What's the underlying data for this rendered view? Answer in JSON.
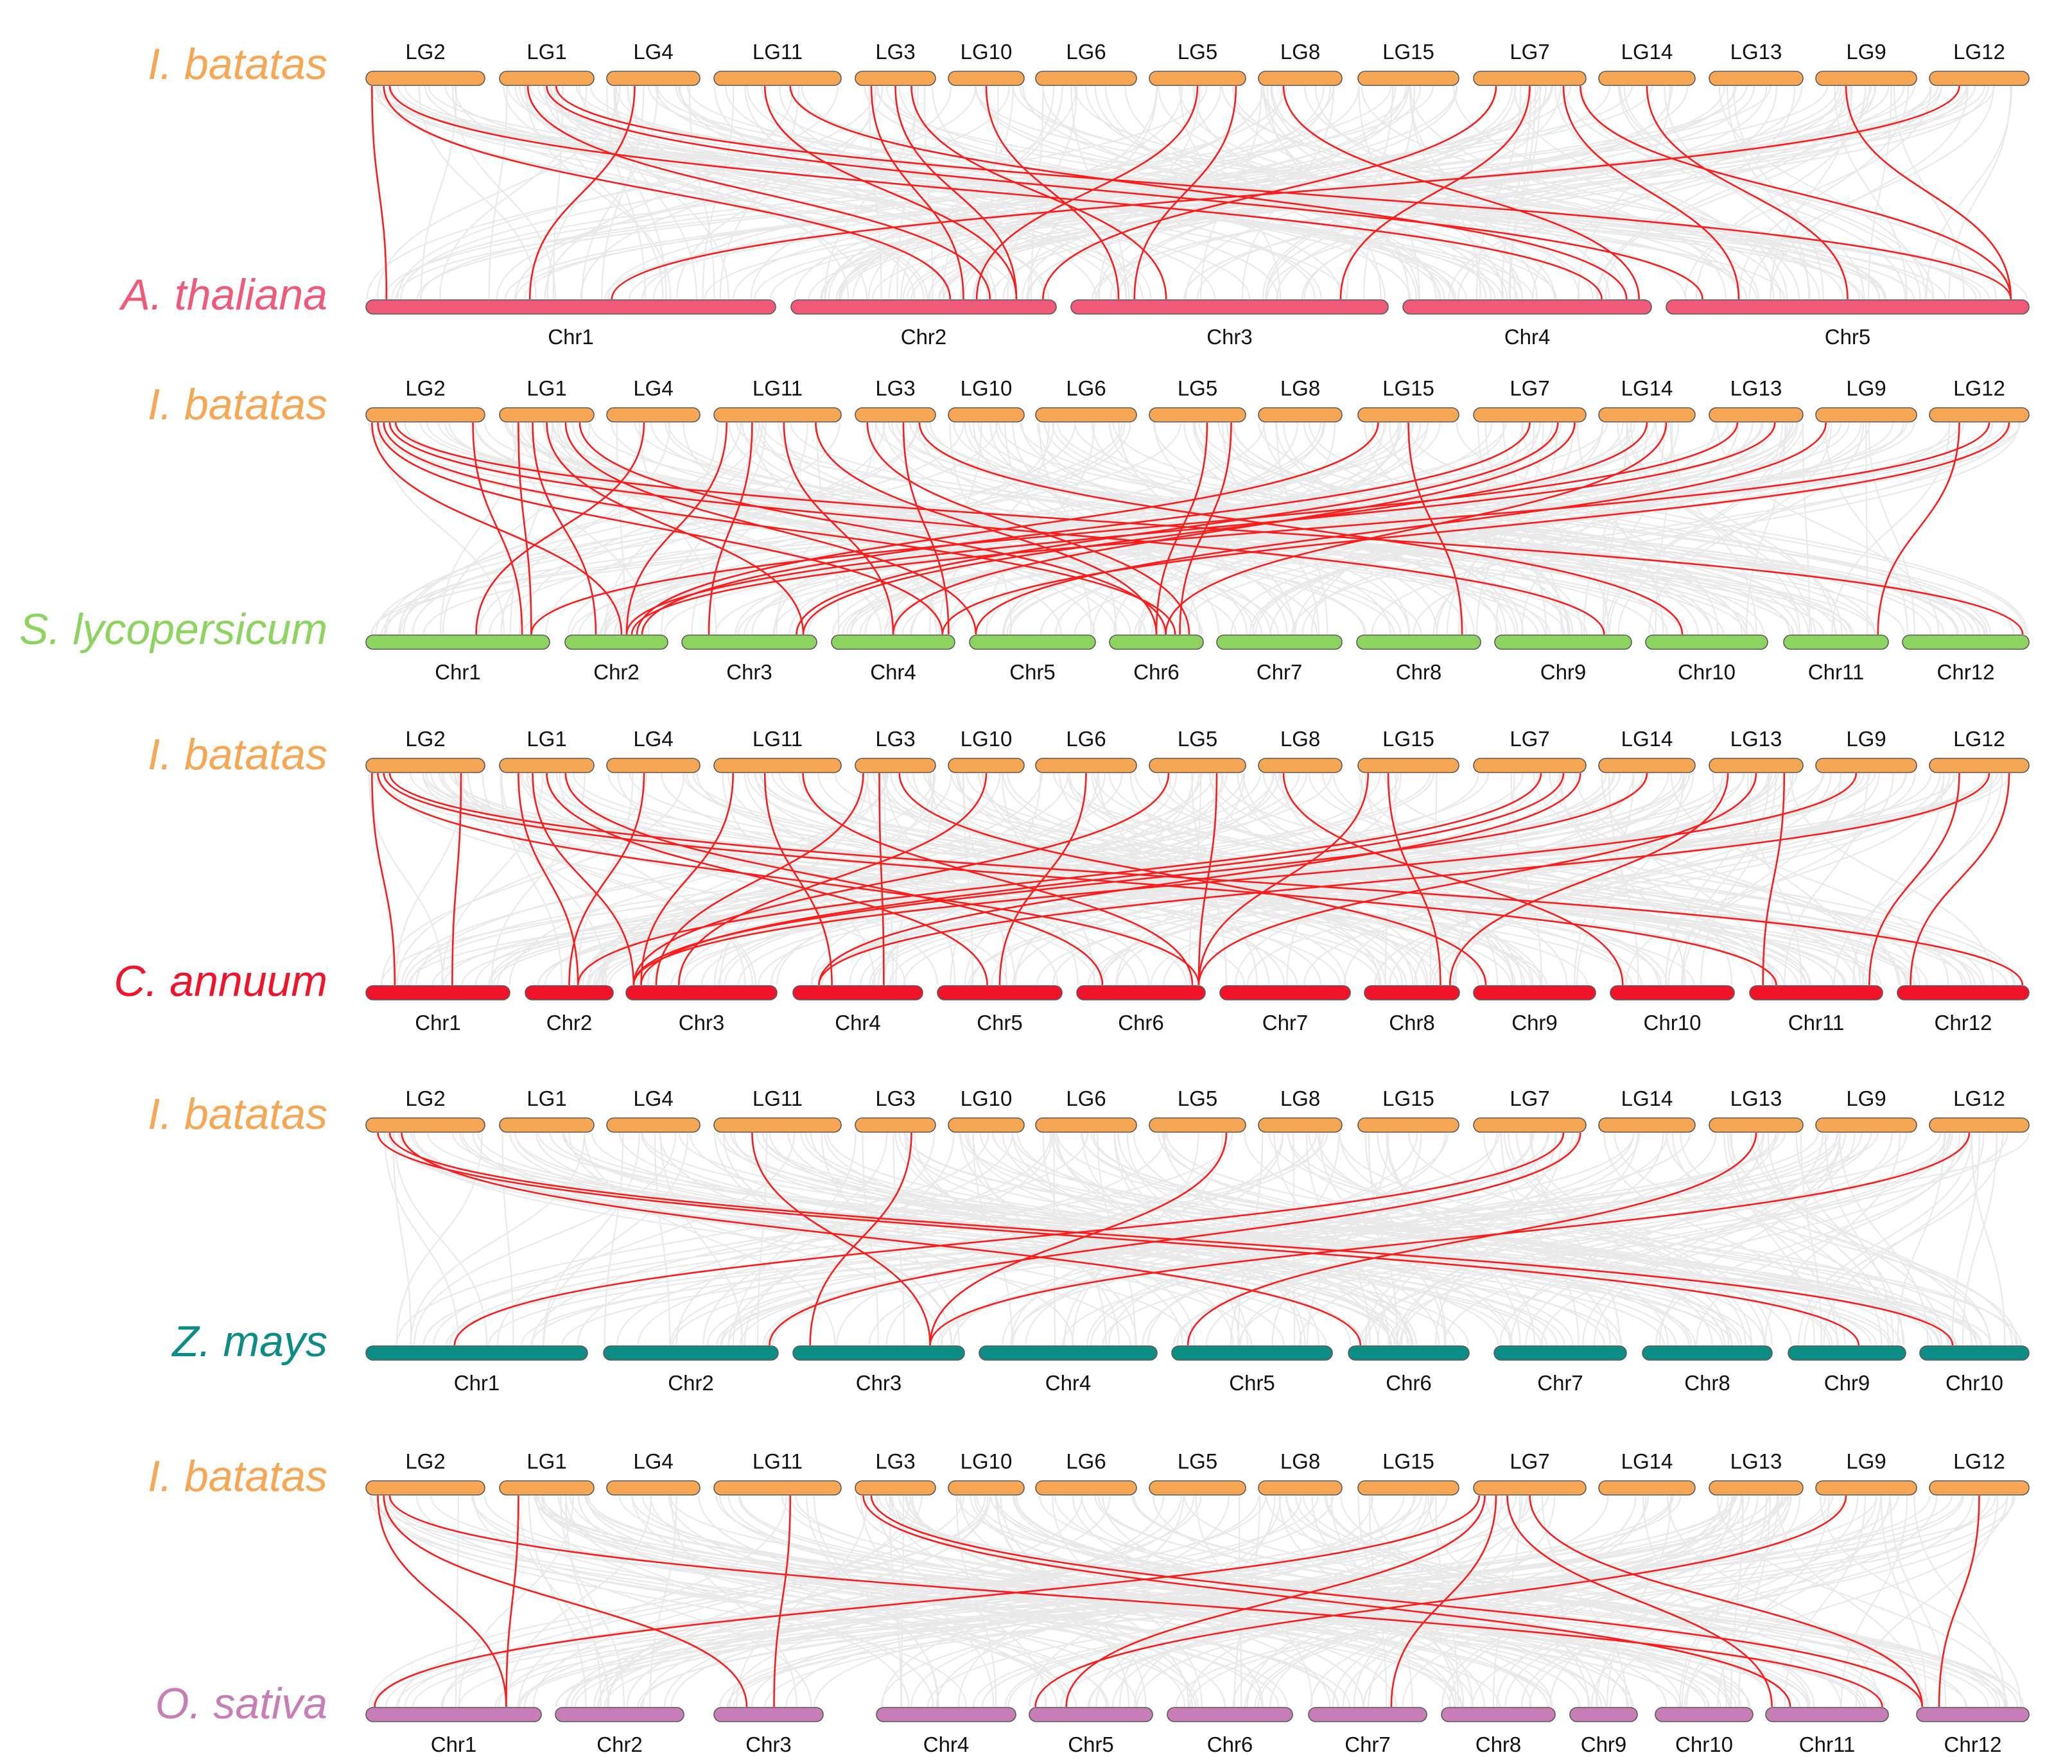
{
  "reference": {
    "name": "I. batatas",
    "color": "#F7A653",
    "chromosomes": [
      "LG2",
      "LG1",
      "LG4",
      "LG11",
      "LG3",
      "LG10",
      "LG6",
      "LG5",
      "LG8",
      "LG15",
      "LG7",
      "LG14",
      "LG13",
      "LG9",
      "LG12"
    ]
  },
  "background_link_color": "#E6E6E6",
  "highlight_link_color": "#FF1A1A",
  "panels": [
    {
      "target": "A. thaliana",
      "color": "#EE5A78",
      "chromosomes": [
        "Chr1",
        "Chr2",
        "Chr3",
        "Chr4",
        "Chr5"
      ],
      "links": [
        [
          0,
          0.05,
          0,
          0.05
        ],
        [
          0,
          0.15,
          1,
          0.6
        ],
        [
          0,
          0.2,
          3,
          0.8
        ],
        [
          1,
          0.3,
          1,
          0.75
        ],
        [
          1,
          0.5,
          4,
          0.1
        ],
        [
          1,
          0.6,
          4,
          0.95
        ],
        [
          2,
          0.3,
          0,
          0.4
        ],
        [
          3,
          0.4,
          1,
          0.85
        ],
        [
          3,
          0.6,
          3,
          0.9
        ],
        [
          4,
          0.2,
          1,
          0.65
        ],
        [
          4,
          0.5,
          1,
          0.85
        ],
        [
          4,
          0.7,
          2,
          0.3
        ],
        [
          5,
          0.5,
          2,
          0.15
        ],
        [
          7,
          0.5,
          1,
          0.7
        ],
        [
          7,
          0.9,
          2,
          0.2
        ],
        [
          8,
          0.3,
          3,
          0.95
        ],
        [
          10,
          0.2,
          1,
          0.95
        ],
        [
          10,
          0.5,
          2,
          0.85
        ],
        [
          10,
          0.8,
          4,
          0.2
        ],
        [
          10,
          0.95,
          4,
          0.95
        ],
        [
          11,
          0.5,
          4,
          0.5
        ],
        [
          13,
          0.3,
          4,
          0.95
        ],
        [
          14,
          0.3,
          0,
          0.6
        ]
      ]
    },
    {
      "target": "S. lycopersicum",
      "color": "#8DD35F",
      "chromosomes": [
        "Chr1",
        "Chr2",
        "Chr3",
        "Chr4",
        "Chr5",
        "Chr6",
        "Chr7",
        "Chr8",
        "Chr9",
        "Chr10",
        "Chr11",
        "Chr12"
      ],
      "links": [
        [
          0,
          0.05,
          1,
          0.55
        ],
        [
          0,
          0.1,
          3,
          0.9
        ],
        [
          0,
          0.15,
          5,
          0.7
        ],
        [
          0,
          0.2,
          8,
          0.8
        ],
        [
          0,
          0.25,
          11,
          0.95
        ],
        [
          0,
          0.9,
          0,
          0.85
        ],
        [
          1,
          0.2,
          0,
          0.9
        ],
        [
          1,
          0.35,
          1,
          0.3
        ],
        [
          1,
          0.5,
          2,
          0.9
        ],
        [
          1,
          0.7,
          4,
          0.05
        ],
        [
          1,
          0.85,
          5,
          0.6
        ],
        [
          2,
          0.4,
          0,
          0.6
        ],
        [
          3,
          0.1,
          1,
          0.6
        ],
        [
          3,
          0.3,
          2,
          0.2
        ],
        [
          3,
          0.55,
          3,
          0.5
        ],
        [
          3,
          0.8,
          5,
          0.5
        ],
        [
          4,
          0.15,
          5,
          0.85
        ],
        [
          4,
          0.6,
          3,
          0.95
        ],
        [
          4,
          0.8,
          9,
          0.3
        ],
        [
          7,
          0.6,
          5,
          0.5
        ],
        [
          7,
          0.85,
          5,
          0.75
        ],
        [
          9,
          0.2,
          1,
          0.7
        ],
        [
          9,
          0.5,
          7,
          0.85
        ],
        [
          10,
          0.5,
          1,
          0.75
        ],
        [
          10,
          0.75,
          2,
          0.85
        ],
        [
          10,
          0.9,
          3,
          0.5
        ],
        [
          11,
          0.5,
          2,
          0.9
        ],
        [
          11,
          0.7,
          5,
          0.6
        ],
        [
          12,
          0.3,
          0,
          0.9
        ],
        [
          12,
          0.7,
          1,
          0.6
        ],
        [
          13,
          0.1,
          4,
          0.05
        ],
        [
          14,
          0.3,
          10,
          0.9
        ],
        [
          14,
          0.6,
          1,
          0.65
        ],
        [
          14,
          0.8,
          3,
          0.9
        ]
      ]
    },
    {
      "target": "C. annuum",
      "color": "#F0132A",
      "chromosomes": [
        "Chr1",
        "Chr2",
        "Chr3",
        "Chr4",
        "Chr5",
        "Chr6",
        "Chr7",
        "Chr8",
        "Chr9",
        "Chr10",
        "Chr11",
        "Chr12"
      ],
      "links": [
        [
          0,
          0.05,
          0,
          0.2
        ],
        [
          0,
          0.1,
          5,
          0.95
        ],
        [
          0,
          0.15,
          10,
          0.2
        ],
        [
          0,
          0.2,
          11,
          0.95
        ],
        [
          0,
          0.8,
          0,
          0.6
        ],
        [
          1,
          0.2,
          1,
          0.6
        ],
        [
          1,
          0.35,
          2,
          0.05
        ],
        [
          1,
          0.5,
          4,
          0.4
        ],
        [
          1,
          0.7,
          5,
          0.2
        ],
        [
          2,
          0.4,
          1,
          0.5
        ],
        [
          3,
          0.15,
          2,
          0.1
        ],
        [
          3,
          0.4,
          3,
          0.3
        ],
        [
          3,
          0.7,
          5,
          0.9
        ],
        [
          4,
          0.1,
          2,
          0.2
        ],
        [
          4,
          0.3,
          3,
          0.7
        ],
        [
          4,
          0.55,
          8,
          0.1
        ],
        [
          5,
          0.5,
          2,
          0.35
        ],
        [
          6,
          0.5,
          4,
          0.5
        ],
        [
          7,
          0.2,
          2,
          0.05
        ],
        [
          7,
          0.7,
          5,
          0.95
        ],
        [
          8,
          0.3,
          9,
          0.1
        ],
        [
          9,
          0.1,
          5,
          0.95
        ],
        [
          9,
          0.3,
          7,
          0.8
        ],
        [
          10,
          0.6,
          1,
          0.6
        ],
        [
          10,
          0.8,
          2,
          0.1
        ],
        [
          10,
          0.95,
          3,
          0.2
        ],
        [
          11,
          0.5,
          2,
          0.05
        ],
        [
          12,
          0.2,
          7,
          0.9
        ],
        [
          12,
          0.5,
          5,
          0.95
        ],
        [
          12,
          0.8,
          10,
          0.1
        ],
        [
          13,
          0.4,
          2,
          0.05
        ],
        [
          14,
          0.3,
          10,
          0.9
        ],
        [
          14,
          0.6,
          3,
          0.2
        ],
        [
          14,
          0.8,
          11,
          0.1
        ]
      ]
    },
    {
      "target": "Z. mays",
      "color": "#0B8C85",
      "chromosomes": [
        "Chr1",
        "Chr2",
        "Chr3",
        "Chr4",
        "Chr5",
        "Chr6",
        "Chr7",
        "Chr8",
        "Chr9",
        "Chr10"
      ],
      "links": [
        [
          0,
          0.1,
          8,
          0.6
        ],
        [
          0,
          0.2,
          9,
          0.3
        ],
        [
          0,
          0.3,
          5,
          0.1
        ],
        [
          3,
          0.3,
          2,
          0.8
        ],
        [
          4,
          0.7,
          2,
          0.1
        ],
        [
          7,
          0.8,
          2,
          0.8
        ],
        [
          10,
          0.8,
          0,
          0.4
        ],
        [
          10,
          0.95,
          1,
          0.95
        ],
        [
          12,
          0.5,
          4,
          0.1
        ],
        [
          14,
          0.4,
          2,
          0.8
        ]
      ]
    },
    {
      "target": "O. sativa",
      "color": "#C77DB5",
      "chromosomes": [
        "Chr1",
        "Chr2",
        "Chr3",
        "Chr4",
        "Chr5",
        "Chr6",
        "Chr7",
        "Chr8",
        "Chr9",
        "Chr10",
        "Chr11",
        "Chr12"
      ],
      "links": [
        [
          0,
          0.1,
          0,
          0.8
        ],
        [
          0,
          0.15,
          2,
          0.3
        ],
        [
          0,
          0.2,
          10,
          0.95
        ],
        [
          1,
          0.2,
          0,
          0.8
        ],
        [
          3,
          0.6,
          2,
          0.55
        ],
        [
          4,
          0.1,
          10,
          0.2
        ],
        [
          4,
          0.2,
          11,
          0.05
        ],
        [
          10,
          0.05,
          0,
          0.05
        ],
        [
          10,
          0.1,
          4,
          0.3
        ],
        [
          10,
          0.2,
          6,
          0.7
        ],
        [
          10,
          0.3,
          10,
          0.05
        ],
        [
          10,
          0.5,
          11,
          0.05
        ],
        [
          13,
          0.3,
          4,
          0.05
        ],
        [
          14,
          0.5,
          11,
          0.2
        ]
      ]
    }
  ]
}
